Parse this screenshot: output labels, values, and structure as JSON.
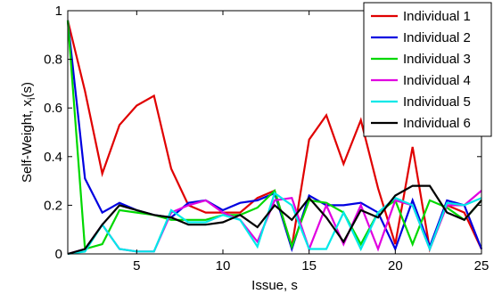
{
  "chart_data": {
    "type": "line",
    "title": "",
    "xlabel": "Issue, s",
    "ylabel_main": "Self-Weight, x",
    "ylabel_sub": "i",
    "ylabel_tail": "(s)",
    "xlim": [
      1,
      25
    ],
    "ylim": [
      0,
      1
    ],
    "xticks": [
      5,
      10,
      15,
      20,
      25
    ],
    "yticks": [
      0,
      0.2,
      0.4,
      0.6,
      0.8,
      1
    ],
    "ytick_labels": [
      "0",
      "0.2",
      "0.4",
      "0.6",
      "0.8",
      "1"
    ],
    "xtick_labels": [
      "5",
      "10",
      "15",
      "20",
      "25"
    ],
    "grid": false,
    "legend_position": "top-right",
    "x": [
      1,
      2,
      3,
      4,
      5,
      6,
      7,
      8,
      9,
      10,
      11,
      12,
      13,
      14,
      15,
      16,
      17,
      18,
      19,
      20,
      21,
      22,
      23,
      24,
      25
    ],
    "series": [
      {
        "name": "Individual 1",
        "color": "#e00000",
        "values": [
          0.96,
          0.67,
          0.33,
          0.53,
          0.61,
          0.65,
          0.35,
          0.2,
          0.17,
          0.17,
          0.17,
          0.23,
          0.26,
          0.03,
          0.47,
          0.57,
          0.37,
          0.55,
          0.27,
          0.04,
          0.44,
          0.02,
          0.2,
          0.17,
          0.02
        ]
      },
      {
        "name": "Individual 2",
        "color": "#0000e0",
        "values": [
          0.96,
          0.31,
          0.17,
          0.21,
          0.18,
          0.16,
          0.15,
          0.21,
          0.22,
          0.18,
          0.21,
          0.22,
          0.25,
          0.02,
          0.24,
          0.2,
          0.2,
          0.21,
          0.17,
          0.02,
          0.22,
          0.03,
          0.22,
          0.2,
          0.02
        ]
      },
      {
        "name": "Individual 3",
        "color": "#00d800",
        "values": [
          0.96,
          0.02,
          0.04,
          0.18,
          0.17,
          0.16,
          0.14,
          0.14,
          0.14,
          0.16,
          0.16,
          0.19,
          0.26,
          0.03,
          0.22,
          0.21,
          0.17,
          0.04,
          0.17,
          0.22,
          0.04,
          0.22,
          0.19,
          0.14,
          0.22
        ]
      },
      {
        "name": "Individual 4",
        "color": "#e000e0",
        "values": [
          0.0,
          0.02,
          0.12,
          0.02,
          0.01,
          0.01,
          0.17,
          0.2,
          0.22,
          0.17,
          0.14,
          0.05,
          0.22,
          0.23,
          0.02,
          0.2,
          0.04,
          0.2,
          0.02,
          0.22,
          0.2,
          0.02,
          0.2,
          0.2,
          0.26
        ]
      },
      {
        "name": "Individual 5",
        "color": "#00e8e8",
        "values": [
          0.0,
          0.01,
          0.12,
          0.02,
          0.01,
          0.01,
          0.18,
          0.13,
          0.13,
          0.16,
          0.14,
          0.03,
          0.25,
          0.2,
          0.02,
          0.02,
          0.17,
          0.02,
          0.17,
          0.23,
          0.2,
          0.02,
          0.21,
          0.2,
          0.23
        ]
      },
      {
        "name": "Individual 6",
        "color": "#000000",
        "values": [
          0.0,
          0.02,
          0.12,
          0.2,
          0.18,
          0.16,
          0.15,
          0.12,
          0.12,
          0.13,
          0.16,
          0.11,
          0.2,
          0.14,
          0.23,
          0.15,
          0.05,
          0.18,
          0.15,
          0.24,
          0.28,
          0.28,
          0.17,
          0.14,
          0.22
        ]
      }
    ]
  }
}
